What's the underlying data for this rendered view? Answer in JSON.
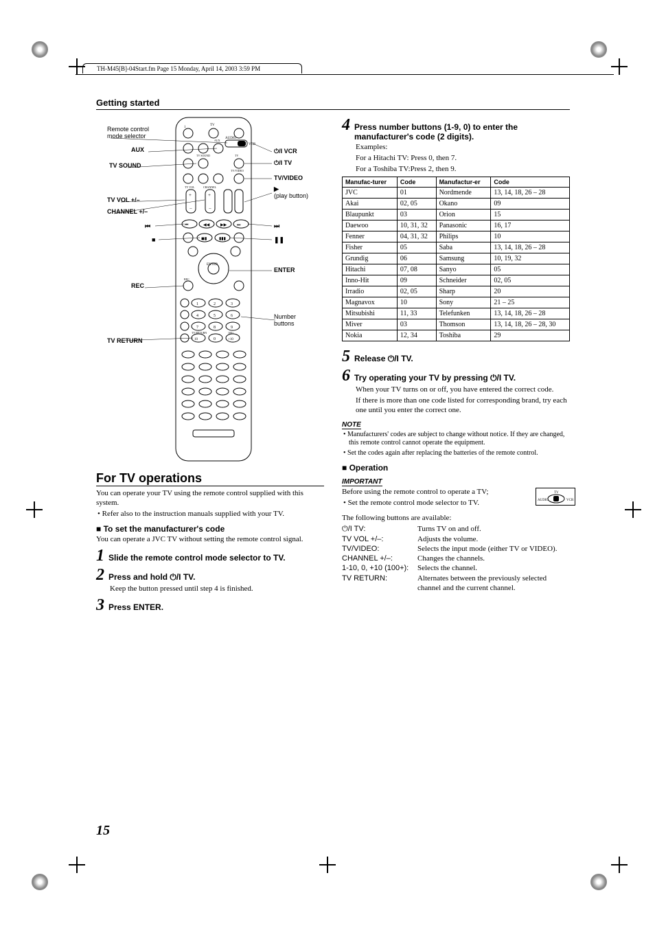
{
  "header": {
    "filepath": "TH-M45[B]-04Start.fm  Page 15  Monday, April 14, 2003  3:59 PM"
  },
  "section": "Getting started",
  "remote": {
    "callouts_left": [
      "Remote control mode selector",
      "AUX",
      "TV SOUND",
      "TV VOL +/–",
      "CHANNEL +/–",
      "⏮",
      "■",
      "REC",
      "TV RETURN"
    ],
    "callouts_right": [
      "⏻/I VCR",
      "⏻/I TV",
      "TV/VIDEO",
      "▶ (play button)",
      "⏭",
      "❚❚",
      "ENTER",
      "Number buttons"
    ]
  },
  "left": {
    "title": "For TV operations",
    "intro": "You can operate your TV using the remote control supplied with this system.",
    "intro_bullet": "• Refer also to the instruction manuals supplied with your TV.",
    "sub": "To set the manufacturer's code",
    "sub_body": "You can operate a JVC TV without setting the remote control signal.",
    "step1": "Slide the remote control mode selector to TV.",
    "step2": "Press and hold ⏻/I TV.",
    "step2_body": "Keep the button pressed until step 4 is finished.",
    "step3": "Press ENTER."
  },
  "right": {
    "step4": "Press number buttons (1-9, 0) to enter the manufacturer's code (2 digits).",
    "examples_label": "Examples:",
    "examples_1": "For a Hitachi TV: Press 0, then 7.",
    "examples_2": "For a Toshiba TV:Press 2, then 9.",
    "table": {
      "headers": [
        "Manufac-turer",
        "Code",
        "Manufactur-er",
        "Code"
      ],
      "rows": [
        [
          "JVC",
          "01",
          "Nordmende",
          "13, 14, 18, 26 – 28"
        ],
        [
          "Akai",
          "02, 05",
          "Okano",
          "09"
        ],
        [
          "Blaupunkt",
          "03",
          "Orion",
          "15"
        ],
        [
          "Daewoo",
          "10, 31, 32",
          "Panasonic",
          "16, 17"
        ],
        [
          "Fenner",
          "04, 31, 32",
          "Philips",
          "10"
        ],
        [
          "Fisher",
          "05",
          "Saba",
          "13, 14, 18, 26 – 28"
        ],
        [
          "Grundig",
          "06",
          "Samsung",
          "10, 19, 32"
        ],
        [
          "Hitachi",
          "07, 08",
          "Sanyo",
          "05"
        ],
        [
          "Inno-Hit",
          "09",
          "Schneider",
          "02, 05"
        ],
        [
          "Irradio",
          "02, 05",
          "Sharp",
          "20"
        ],
        [
          "Magnavox",
          "10",
          "Sony",
          "21 – 25"
        ],
        [
          "Mitsubishi",
          "11, 33",
          "Telefunken",
          "13, 14, 18, 26 – 28"
        ],
        [
          "Miver",
          "03",
          "Thomson",
          "13, 14, 18, 26 – 28, 30"
        ],
        [
          "Nokia",
          "12, 34",
          "Toshiba",
          "29"
        ]
      ]
    },
    "step5": "Release ⏻/I TV.",
    "step6": "Try operating your TV by pressing ⏻/I TV.",
    "step6_body1": "When your TV turns on or off, you have entered the correct code.",
    "step6_body2": "If there is more than one code listed for corresponding brand, try each one until you enter the correct one.",
    "note_label": "NOTE",
    "note1": "• Manufacturers' codes are subject to change without notice. If they are changed, this remote control cannot operate the equipment.",
    "note2": "• Set the codes again after replacing the batteries of the remote control.",
    "operation": "Operation",
    "important_label": "IMPORTANT",
    "important_body": "Before using the remote control to operate a TV;",
    "important_bullet": "• Set the remote control mode selector to TV.",
    "selector_caption_top": "TV",
    "selector_caption_l": "AUDIO",
    "selector_caption_r": "VCR",
    "following": "The following buttons are available:",
    "functions": [
      [
        "⏻/I TV:",
        "Turns TV on and off."
      ],
      [
        "TV VOL +/–:",
        "Adjusts the volume."
      ],
      [
        "TV/VIDEO:",
        "Selects the input mode (either TV or VIDEO)."
      ],
      [
        "CHANNEL +/–:",
        "Changes the channels."
      ],
      [
        "1-10, 0, +10 (100+):",
        "Selects the channel."
      ],
      [
        "TV RETURN:",
        "Alternates between the previously selected channel and the current channel."
      ]
    ]
  },
  "page_number": "15"
}
